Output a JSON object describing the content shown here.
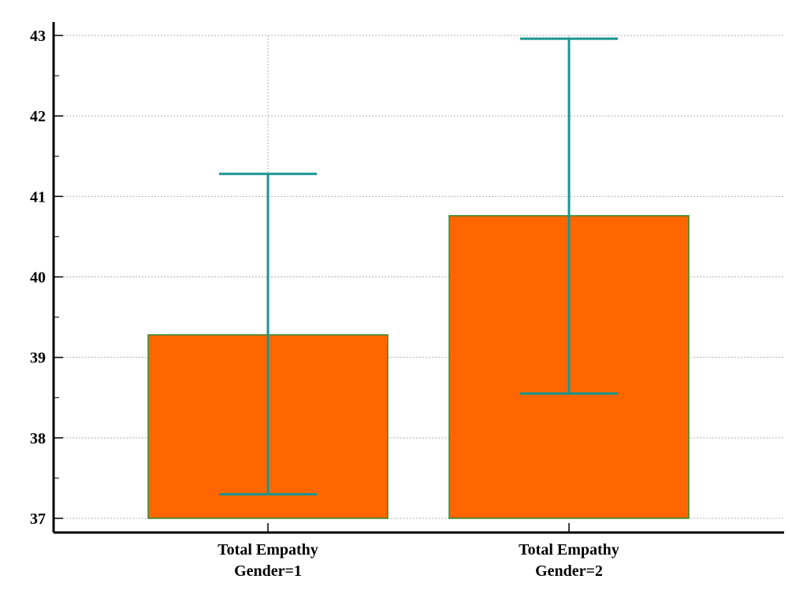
{
  "chart_data": {
    "type": "bar",
    "title": "",
    "xlabel": "",
    "ylabel": "",
    "ylim": [
      37,
      43
    ],
    "yticks": [
      37,
      38,
      39,
      40,
      41,
      42,
      43
    ],
    "grid": true,
    "categories": [
      [
        "Total Empathy",
        "Gender=1"
      ],
      [
        "Total Empathy",
        "Gender=2"
      ]
    ],
    "values": [
      39.28,
      40.76
    ],
    "error_bars": [
      {
        "low": 37.3,
        "high": 41.28
      },
      {
        "low": 38.55,
        "high": 42.96
      }
    ],
    "colors": {
      "bar_fill": "#ff6600",
      "bar_edge": "#2e8b2e",
      "error_bar": "#1a9590",
      "grid": "#b0b0b0",
      "axis": "#000000"
    }
  }
}
